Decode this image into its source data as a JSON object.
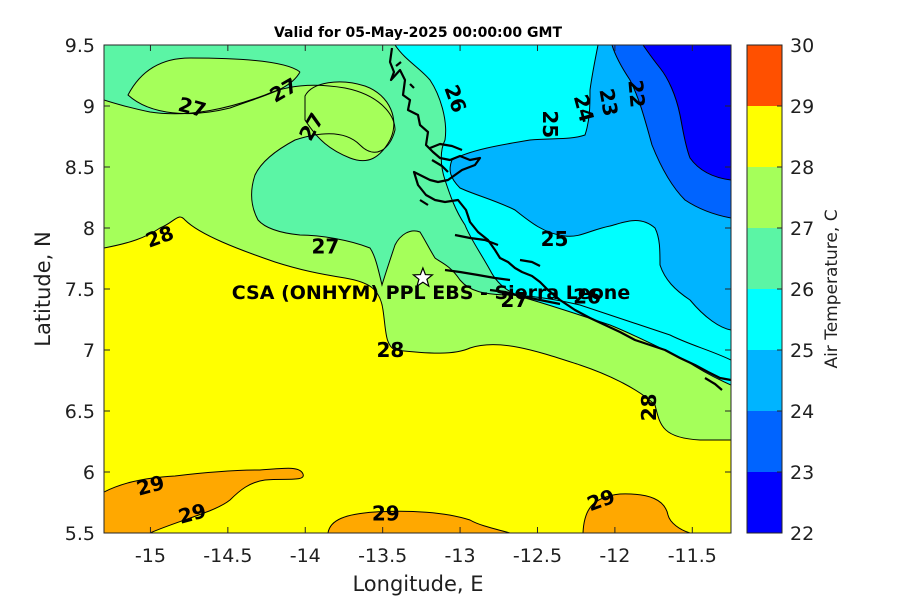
{
  "chart_data": {
    "type": "filled-contour-map",
    "title": "Valid for 05-May-2025 00:00:00 GMT",
    "xlabel": "Longitude, E",
    "ylabel": "Latitude, N",
    "xlim": [
      -15.3,
      -11.25
    ],
    "ylim": [
      5.5,
      9.5
    ],
    "xticks": [
      "-15",
      "-14.5",
      "-14",
      "-13.5",
      "-13",
      "-12.5",
      "-12",
      "-11.5"
    ],
    "yticks": [
      "5.5",
      "6",
      "6.5",
      "7",
      "7.5",
      "8",
      "8.5",
      "9",
      "9.5"
    ],
    "colorbar": {
      "label": "Air Temperature, C",
      "levels": [
        22,
        23,
        24,
        25,
        26,
        27,
        28,
        29,
        30
      ],
      "tick_labels": [
        "22",
        "23",
        "24",
        "25",
        "26",
        "27",
        "28",
        "29",
        "30"
      ],
      "colors": [
        "#0000ff",
        "#0040ff",
        "#0080ff",
        "#00bfff",
        "#00ffff",
        "#40ffbf",
        "#80ff80",
        "#bfff40",
        "#ffff00",
        "#ffbf00",
        "#ff8000",
        "#ff4000"
      ]
    },
    "station": {
      "name": "CSA (ONHYM) PPL EBS - Sierra Leone",
      "lon": -13.24,
      "lat": 7.59
    },
    "contour_labels": [
      {
        "text": "27",
        "lon": -14.14,
        "lat": 9.13
      },
      {
        "text": "27",
        "lon": -14.73,
        "lat": 8.99
      },
      {
        "text": "27",
        "lon": -13.96,
        "lat": 8.83
      },
      {
        "text": "26",
        "lon": -13.03,
        "lat": 9.06
      },
      {
        "text": "25",
        "lon": -12.42,
        "lat": 8.85
      },
      {
        "text": "24",
        "lon": -12.2,
        "lat": 8.98
      },
      {
        "text": "23",
        "lon": -12.04,
        "lat": 9.03
      },
      {
        "text": "22",
        "lon": -11.86,
        "lat": 9.1
      },
      {
        "text": "28",
        "lon": -14.94,
        "lat": 7.93
      },
      {
        "text": "27",
        "lon": -13.87,
        "lat": 7.85
      },
      {
        "text": "25",
        "lon": -12.39,
        "lat": 7.91
      },
      {
        "text": "27",
        "lon": -12.65,
        "lat": 7.41
      },
      {
        "text": "26",
        "lon": -12.18,
        "lat": 7.44
      },
      {
        "text": "28",
        "lon": -13.45,
        "lat": 7.0
      },
      {
        "text": "28",
        "lon": -11.78,
        "lat": 6.53
      },
      {
        "text": "29",
        "lon": -15.0,
        "lat": 5.89
      },
      {
        "text": "29",
        "lon": -14.73,
        "lat": 5.66
      },
      {
        "text": "29",
        "lon": -13.48,
        "lat": 5.66
      },
      {
        "text": "29",
        "lon": -12.09,
        "lat": 5.77
      }
    ]
  }
}
